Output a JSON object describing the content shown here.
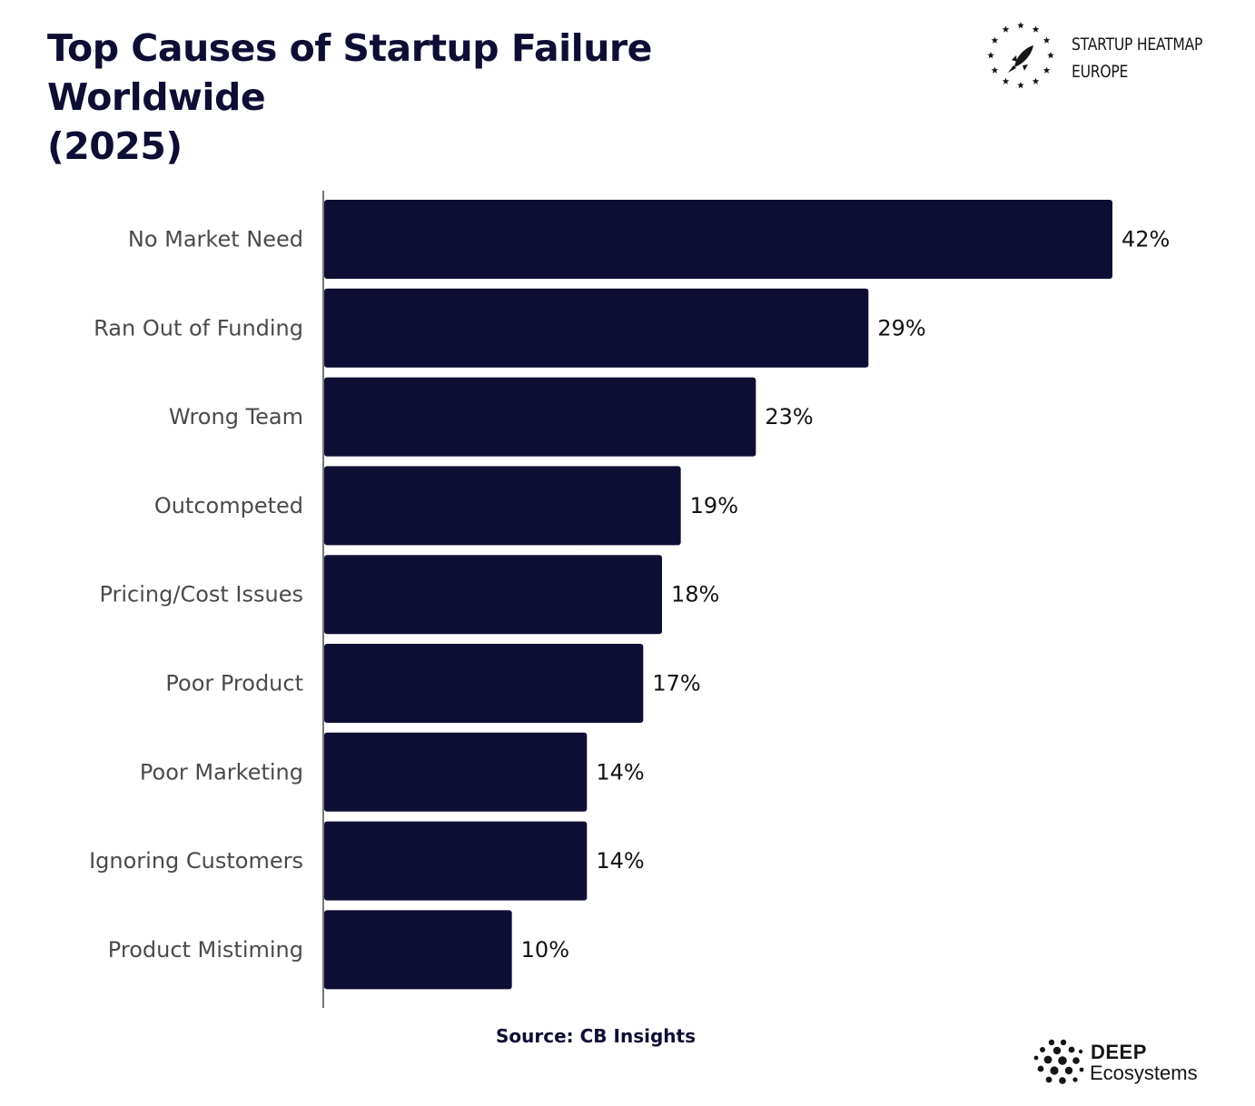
{
  "title": {
    "line1": "Top Causes of Startup Failure Worldwide",
    "line2": "(2025)"
  },
  "brand_top": {
    "line1": "STARTUP HEATMAP",
    "line2": "EUROPE",
    "icon": "rocket-stars-icon"
  },
  "brand_bottom": {
    "line1": "DEEP",
    "line2": "Ecosystems",
    "icon": "dots-cluster-icon"
  },
  "source": "Source: CB Insights",
  "colors": {
    "bar": "#0e0e35",
    "category_label": "#4a4a4a",
    "value_label": "#111111",
    "axis": "#777777"
  },
  "chart_data": {
    "type": "bar",
    "orientation": "horizontal",
    "categories": [
      "No Market Need",
      "Ran Out of Funding",
      "Wrong Team",
      "Outcompeted",
      "Pricing/Cost Issues",
      "Poor Product",
      "Poor Marketing",
      "Ignoring Customers",
      "Product Mistiming"
    ],
    "values": [
      42,
      29,
      23,
      19,
      18,
      17,
      14,
      14,
      10
    ],
    "value_labels": [
      "42%",
      "29%",
      "23%",
      "19%",
      "18%",
      "17%",
      "14%",
      "14%",
      "10%"
    ],
    "unit": "%",
    "xlim": [
      0,
      42
    ],
    "grid": false,
    "legend": "none"
  }
}
